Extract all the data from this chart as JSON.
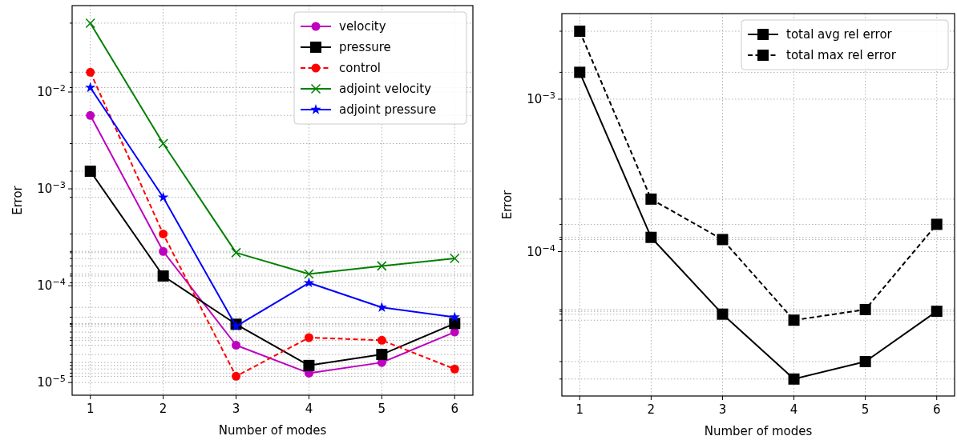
{
  "chart_data": [
    {
      "type": "line",
      "xlabel": "Number of modes",
      "ylabel": "Error",
      "log": "y",
      "grid": true,
      "legend": "top right",
      "x": [
        1,
        2,
        3,
        4,
        5,
        6
      ],
      "xlim": [
        0.75,
        6.25
      ],
      "xticks": [
        1,
        2,
        3,
        4,
        5,
        6
      ],
      "ylim": [
        7.4e-06,
        0.078
      ],
      "yticks": [
        {
          "value": 1e-05,
          "label": "10$^{−5}$"
        },
        {
          "value": 0.0001,
          "label": "10$^{−4}$"
        },
        {
          "value": 0.001,
          "label": "10$^{−3}$"
        },
        {
          "value": 0.01,
          "label": "10$^{−2}$"
        },
        {
          "value": 0.00573,
          "label": null
        },
        {
          "value": 0.000226,
          "label": null
        },
        {
          "value": 2.43e-05,
          "label": null
        },
        {
          "value": 1.25e-05,
          "label": null
        },
        {
          "value": 1.61e-05,
          "label": null
        },
        {
          "value": 3.32e-05,
          "label": null
        },
        {
          "value": 0.00152,
          "label": null
        },
        {
          "value": 0.000126,
          "label": null
        },
        {
          "value": 4e-05,
          "label": null
        },
        {
          "value": 1.5e-05,
          "label": null
        },
        {
          "value": 1.95e-05,
          "label": null
        },
        {
          "value": 4.07e-05,
          "label": null
        },
        {
          "value": 0.016,
          "label": null
        },
        {
          "value": 0.000342,
          "label": null
        },
        {
          "value": 1.16e-05,
          "label": null
        },
        {
          "value": 2.91e-05,
          "label": null
        },
        {
          "value": 2.73e-05,
          "label": null
        },
        {
          "value": 1.38e-05,
          "label": null
        },
        {
          "value": 0.0514,
          "label": null
        },
        {
          "value": 0.00293,
          "label": null
        },
        {
          "value": 0.000219,
          "label": null
        },
        {
          "value": 0.000132,
          "label": null
        },
        {
          "value": 0.00016,
          "label": null
        },
        {
          "value": 0.000191,
          "label": null
        },
        {
          "value": 0.0111,
          "label": null
        },
        {
          "value": 0.000817,
          "label": null
        },
        {
          "value": 3.81e-05,
          "label": null
        },
        {
          "value": 0.000107,
          "label": null
        },
        {
          "value": 5.97e-05,
          "label": null
        },
        {
          "value": 4.73e-05,
          "label": null
        }
      ],
      "series": [
        {
          "name": "velocity",
          "color": "#bf00bf",
          "marker": "circle",
          "line_style": "solid",
          "values": [
            0.00573,
            0.000226,
            2.43e-05,
            1.25e-05,
            1.61e-05,
            3.32e-05
          ]
        },
        {
          "name": "pressure",
          "color": "#000000",
          "marker": "square",
          "line_style": "solid",
          "values": [
            0.00152,
            0.000126,
            4e-05,
            1.5e-05,
            1.95e-05,
            4.07e-05
          ]
        },
        {
          "name": "control",
          "color": "#ff0000",
          "marker": "circle",
          "line_style": "dashed",
          "values": [
            0.016,
            0.000342,
            1.16e-05,
            2.91e-05,
            2.73e-05,
            1.38e-05
          ]
        },
        {
          "name": "adjoint velocity",
          "color": "#008000",
          "marker": "cross",
          "line_style": "solid",
          "values": [
            0.0514,
            0.00293,
            0.000219,
            0.000132,
            0.00016,
            0.000191
          ]
        },
        {
          "name": "adjoint pressure",
          "color": "#0000ff",
          "marker": "star",
          "line_style": "solid",
          "values": [
            0.0111,
            0.000817,
            3.81e-05,
            0.000107,
            5.97e-05,
            4.73e-05
          ]
        }
      ]
    },
    {
      "type": "line",
      "xlabel": "Number of modes",
      "ylabel": "Error",
      "log": "y",
      "grid": true,
      "legend": "top right",
      "x": [
        1,
        2,
        3,
        4,
        5,
        6
      ],
      "xlim": [
        0.75,
        6.25
      ],
      "xticks": [
        1,
        2,
        3,
        4,
        5,
        6
      ],
      "ylim": [
        1.13e-05,
        0.00364
      ],
      "yticks": [
        {
          "value": 0.0001,
          "label": "10$^{−4}$"
        },
        {
          "value": 0.001,
          "label": "10$^{−3}$"
        },
        {
          "value": 0.0015,
          "label": null
        },
        {
          "value": 0.000124,
          "label": null
        },
        {
          "value": 3.89e-05,
          "label": null
        },
        {
          "value": 1.46e-05,
          "label": null
        },
        {
          "value": 1.9e-05,
          "label": null
        },
        {
          "value": 4.06e-05,
          "label": null
        },
        {
          "value": 0.00279,
          "label": null
        },
        {
          "value": 0.000221,
          "label": null
        },
        {
          "value": 0.00012,
          "label": null
        },
        {
          "value": 3.55e-05,
          "label": null
        },
        {
          "value": 4.17e-05,
          "label": null
        },
        {
          "value": 0.000151,
          "label": null
        }
      ],
      "series": [
        {
          "name": "total avg rel error",
          "color": "#000000",
          "marker": "square",
          "line_style": "solid",
          "values": [
            0.0015,
            0.000124,
            3.89e-05,
            1.46e-05,
            1.9e-05,
            4.06e-05
          ]
        },
        {
          "name": "total max rel error",
          "color": "#000000",
          "marker": "square",
          "line_style": "dashed",
          "values": [
            0.00279,
            0.000221,
            0.00012,
            3.55e-05,
            4.17e-05,
            0.000151
          ]
        }
      ]
    }
  ]
}
